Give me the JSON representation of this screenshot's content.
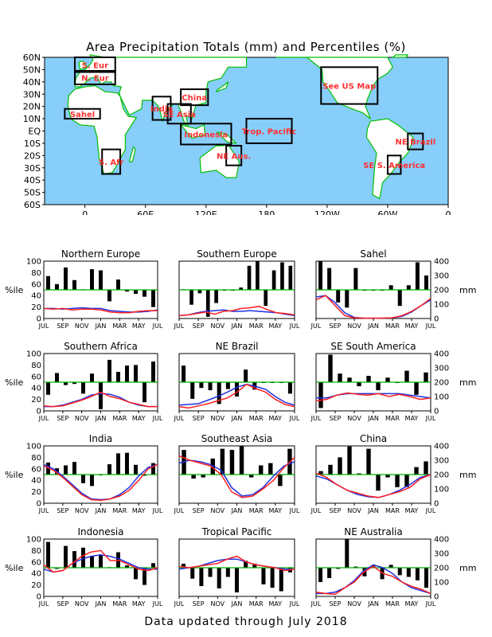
{
  "chart_data": [
    {
      "type": "map",
      "title": "Area Precipitation Totals (mm) and Percentiles (%)",
      "lat_ticks": [
        "60N",
        "50N",
        "40N",
        "30N",
        "20N",
        "10N",
        "EQ",
        "10S",
        "20S",
        "30S",
        "40S",
        "50S",
        "60S"
      ],
      "lon_ticks": [
        "0",
        "60E",
        "120E",
        "180",
        "120W",
        "60W",
        "0"
      ],
      "colors": {
        "ocean": "#87CEFA",
        "land": "#ffffff",
        "coast": "#00C000",
        "box": "#000000",
        "region_label": "#FF3030"
      },
      "regions": [
        {
          "label": "N. Eur",
          "lon": [
            -10,
            30
          ],
          "lat": [
            38,
            49
          ]
        },
        {
          "label": "S. Eur",
          "lon": [
            -10,
            30
          ],
          "lat": [
            48,
            60
          ]
        },
        {
          "label": "Sahel",
          "lon": [
            -20,
            15
          ],
          "lat": [
            10,
            18
          ]
        },
        {
          "label": "India",
          "lon": [
            67,
            85
          ],
          "lat": [
            9,
            28
          ]
        },
        {
          "label": "China",
          "lon": [
            95,
            122
          ],
          "lat": [
            21,
            34
          ]
        },
        {
          "label": "SE Asia",
          "lon": [
            82,
            105
          ],
          "lat": [
            6,
            22
          ]
        },
        {
          "label": "Indonesia",
          "lon": [
            95,
            145
          ],
          "lat": [
            -11,
            6
          ]
        },
        {
          "label": "Trop. Pacific",
          "lon": [
            160,
            205
          ],
          "lat": [
            -10,
            10
          ]
        },
        {
          "label": "NE Aus.",
          "lon": [
            140,
            155
          ],
          "lat": [
            -28,
            -12
          ]
        },
        {
          "label": "See US Map",
          "lon": [
            234,
            290
          ],
          "lat": [
            22,
            52
          ]
        },
        {
          "label": "NE Brazil",
          "lon": [
            320,
            335
          ],
          "lat": [
            -15,
            -2
          ]
        },
        {
          "label": "SE S. America",
          "lon": [
            300,
            313
          ],
          "lat": [
            -35,
            -20
          ]
        },
        {
          "label": "S. Afr",
          "lon": [
            17,
            35
          ],
          "lat": [
            -35,
            -15
          ]
        }
      ]
    },
    {
      "type": "bar+line",
      "panels_meta": {
        "x_ticks": [
          "JUL",
          "SEP",
          "NOV",
          "JAN",
          "MAR",
          "MAY",
          "JUL"
        ],
        "left_axis": {
          "label": "%ile",
          "ticks": [
            0,
            20,
            40,
            60,
            80,
            100
          ],
          "ylim": [
            0,
            100
          ]
        },
        "right_axis": {
          "label": "mm",
          "ticks": [
            0,
            100,
            200,
            300,
            400
          ],
          "ylim": [
            0,
            400
          ]
        },
        "percentile_reference": 50,
        "series_colors": {
          "bars": "#000000",
          "observed": "#FF2020",
          "normal": "#2030E0",
          "reference": "#00B000"
        }
      },
      "panels": [
        {
          "title": "Northern Europe",
          "pct": [
            74,
            60,
            89,
            67,
            51,
            86,
            84,
            30,
            68,
            47,
            43,
            38,
            20
          ],
          "obs": [
            70,
            65,
            70,
            60,
            65,
            65,
            60,
            45,
            40,
            40,
            50,
            55,
            55
          ],
          "norm": [
            70,
            70,
            65,
            70,
            75,
            70,
            70,
            55,
            50,
            45,
            45,
            50,
            60
          ]
        },
        {
          "title": "Southern Europe",
          "pct": [
            51,
            24,
            44,
            3,
            27,
            50,
            50,
            54,
            92,
            100,
            22,
            84,
            98,
            92
          ],
          "obs": [
            20,
            25,
            35,
            45,
            30,
            50,
            55,
            70,
            75,
            85,
            60,
            40,
            35,
            25
          ],
          "norm": [
            20,
            25,
            40,
            50,
            55,
            60,
            50,
            50,
            55,
            50,
            45,
            40,
            30,
            20
          ]
        },
        {
          "title": "Sahel",
          "pct": [
            100,
            88,
            28,
            19,
            88,
            50,
            50,
            50,
            58,
            22,
            58,
            98,
            75
          ],
          "obs": [
            130,
            160,
            90,
            20,
            5,
            3,
            2,
            3,
            5,
            20,
            50,
            90,
            140
          ],
          "norm": [
            150,
            160,
            110,
            40,
            8,
            3,
            2,
            3,
            5,
            15,
            45,
            90,
            130
          ]
        },
        {
          "title": "Southern Africa",
          "pct": [
            28,
            66,
            45,
            47,
            30,
            65,
            3,
            89,
            68,
            79,
            80,
            15,
            86
          ],
          "obs": [
            35,
            30,
            35,
            55,
            75,
            100,
            130,
            100,
            85,
            60,
            45,
            30,
            30
          ],
          "norm": [
            30,
            30,
            40,
            60,
            80,
            110,
            120,
            115,
            95,
            60,
            40,
            30,
            30
          ]
        },
        {
          "title": "NE Brazil",
          "pct": [
            79,
            21,
            40,
            36,
            12,
            38,
            25,
            72,
            37,
            50,
            50,
            50,
            30
          ],
          "obs": [
            30,
            20,
            35,
            50,
            70,
            90,
            130,
            185,
            155,
            130,
            80,
            45,
            30
          ],
          "norm": [
            40,
            45,
            50,
            75,
            100,
            130,
            165,
            185,
            170,
            150,
            100,
            60,
            40
          ]
        },
        {
          "title": "SE South America",
          "pct": [
            5,
            98,
            65,
            58,
            43,
            61,
            36,
            58,
            49,
            70,
            28,
            67
          ],
          "obs": [
            70,
            80,
            110,
            125,
            115,
            110,
            120,
            100,
            115,
            100,
            80,
            90
          ],
          "norm": [
            90,
            90,
            110,
            120,
            120,
            120,
            120,
            120,
            120,
            110,
            100,
            90
          ]
        },
        {
          "title": "India",
          "pct": [
            71,
            61,
            66,
            72,
            35,
            30,
            50,
            68,
            87,
            88,
            67,
            48,
            70
          ],
          "obs": [
            260,
            230,
            180,
            120,
            60,
            25,
            20,
            30,
            50,
            90,
            160,
            240,
            270
          ],
          "norm": [
            270,
            240,
            190,
            130,
            70,
            30,
            25,
            30,
            60,
            110,
            190,
            250,
            270
          ]
        },
        {
          "title": "Southeast Asia",
          "pct": [
            93,
            43,
            45,
            78,
            95,
            93,
            100,
            45,
            66,
            70,
            30,
            95
          ],
          "obs": [
            330,
            300,
            280,
            260,
            200,
            80,
            40,
            50,
            100,
            160,
            250,
            320
          ],
          "norm": [
            280,
            300,
            290,
            270,
            230,
            110,
            50,
            60,
            110,
            190,
            260,
            290
          ]
        },
        {
          "title": "China",
          "pct": [
            56,
            67,
            80,
            99,
            52,
            95,
            22,
            45,
            28,
            28,
            63,
            73
          ],
          "obs": [
            210,
            180,
            130,
            90,
            70,
            50,
            40,
            60,
            80,
            110,
            170,
            200
          ],
          "norm": [
            190,
            170,
            130,
            90,
            60,
            45,
            40,
            60,
            90,
            130,
            180,
            200
          ]
        },
        {
          "title": "Indonesia",
          "pct": [
            95,
            48,
            88,
            79,
            85,
            70,
            72,
            51,
            77,
            54,
            30,
            20,
            58
          ],
          "obs": [
            220,
            170,
            180,
            230,
            280,
            310,
            320,
            250,
            250,
            220,
            190,
            180,
            200
          ],
          "norm": [
            190,
            170,
            180,
            230,
            260,
            280,
            290,
            280,
            260,
            230,
            200,
            190,
            190
          ]
        },
        {
          "title": "Tropical Pacific",
          "pct": [
            57,
            31,
            18,
            34,
            14,
            34,
            7,
            62,
            57,
            21,
            15,
            9,
            42
          ],
          "obs": [
            210,
            200,
            210,
            220,
            230,
            260,
            280,
            240,
            220,
            210,
            200,
            180,
            190
          ],
          "norm": [
            190,
            200,
            210,
            230,
            250,
            260,
            260,
            240,
            220,
            210,
            200,
            190,
            190
          ]
        },
        {
          "title": "NE Australia",
          "pct": [
            25,
            32,
            48,
            100,
            52,
            35,
            55,
            30,
            55,
            37,
            34,
            28,
            15
          ],
          "obs": [
            30,
            20,
            15,
            60,
            100,
            170,
            210,
            160,
            140,
            100,
            70,
            50,
            20
          ],
          "norm": [
            20,
            20,
            30,
            60,
            110,
            180,
            220,
            200,
            160,
            100,
            60,
            40,
            20
          ]
        }
      ]
    }
  ],
  "footer": "Data updated through July 2018"
}
